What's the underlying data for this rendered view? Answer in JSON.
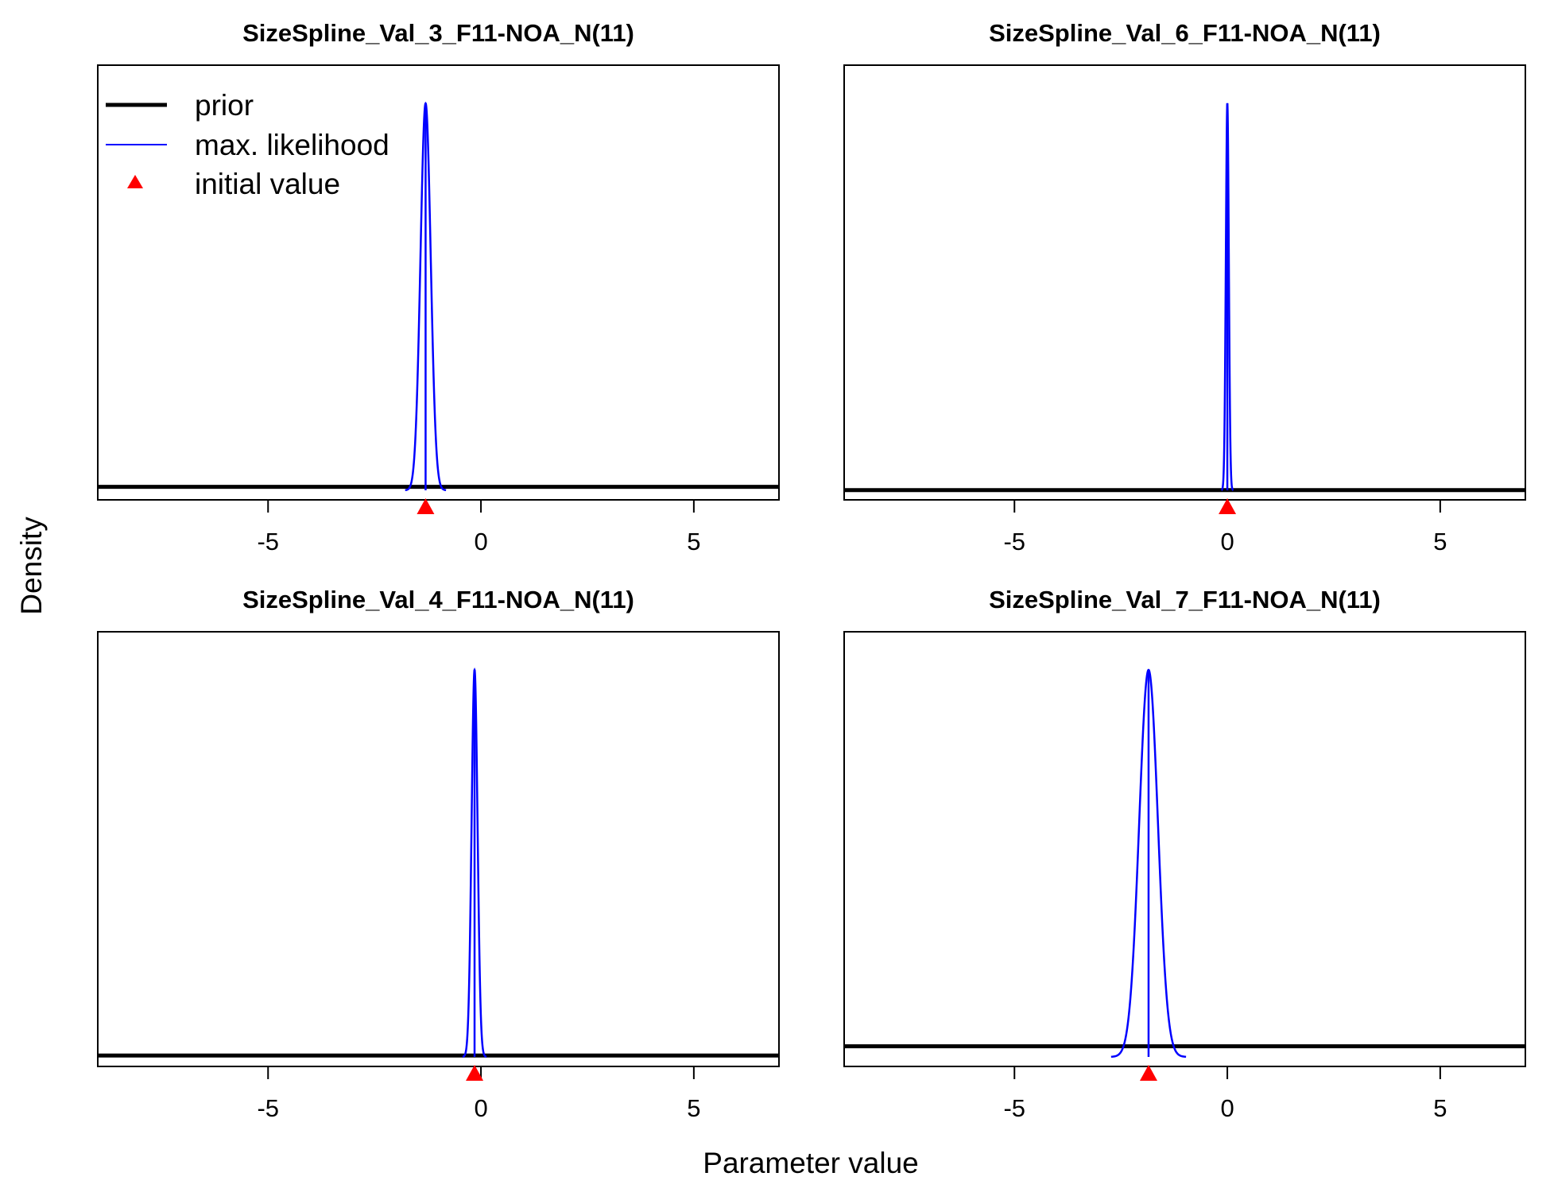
{
  "figure": {
    "ylabel": "Density",
    "xlabel": "Parameter value",
    "colors": {
      "prior": "#000000",
      "maxlik": "#0000ff",
      "initial": "#ff0000",
      "frame": "#000000"
    }
  },
  "legend": {
    "location": "top-left of first panel",
    "entries": [
      {
        "label": "prior",
        "style": "thick-black-line"
      },
      {
        "label": "max. likelihood",
        "style": "thin-blue-line"
      },
      {
        "label": "initial value",
        "style": "red-triangle"
      }
    ]
  },
  "chart_data": [
    {
      "type": "line",
      "title": "SizeSpline_Val_3_F11-NOA_N(11)",
      "xlim": [
        -9,
        7
      ],
      "xticks": [
        -5,
        0,
        5
      ],
      "prior_level": 0.03,
      "maxlik": {
        "mean": -1.3,
        "sd": 0.12
      },
      "initial_value": -1.3
    },
    {
      "type": "line",
      "title": "SizeSpline_Val_6_F11-NOA_N(11)",
      "xlim": [
        -9,
        7
      ],
      "xticks": [
        -5,
        0,
        5
      ],
      "prior_level": 0.005,
      "maxlik": {
        "mean": 0.0,
        "sd": 0.035
      },
      "initial_value": 0.0
    },
    {
      "type": "line",
      "title": "SizeSpline_Val_4_F11-NOA_N(11)",
      "xlim": [
        -9,
        7
      ],
      "xticks": [
        -5,
        0,
        5
      ],
      "prior_level": 0.02,
      "maxlik": {
        "mean": -0.15,
        "sd": 0.07
      },
      "initial_value": -0.15
    },
    {
      "type": "line",
      "title": "SizeSpline_Val_7_F11-NOA_N(11)",
      "xlim": [
        -9,
        7
      ],
      "xticks": [
        -5,
        0,
        5
      ],
      "prior_level": 0.05,
      "maxlik": {
        "mean": -1.85,
        "sd": 0.22
      },
      "initial_value": -1.85
    }
  ]
}
